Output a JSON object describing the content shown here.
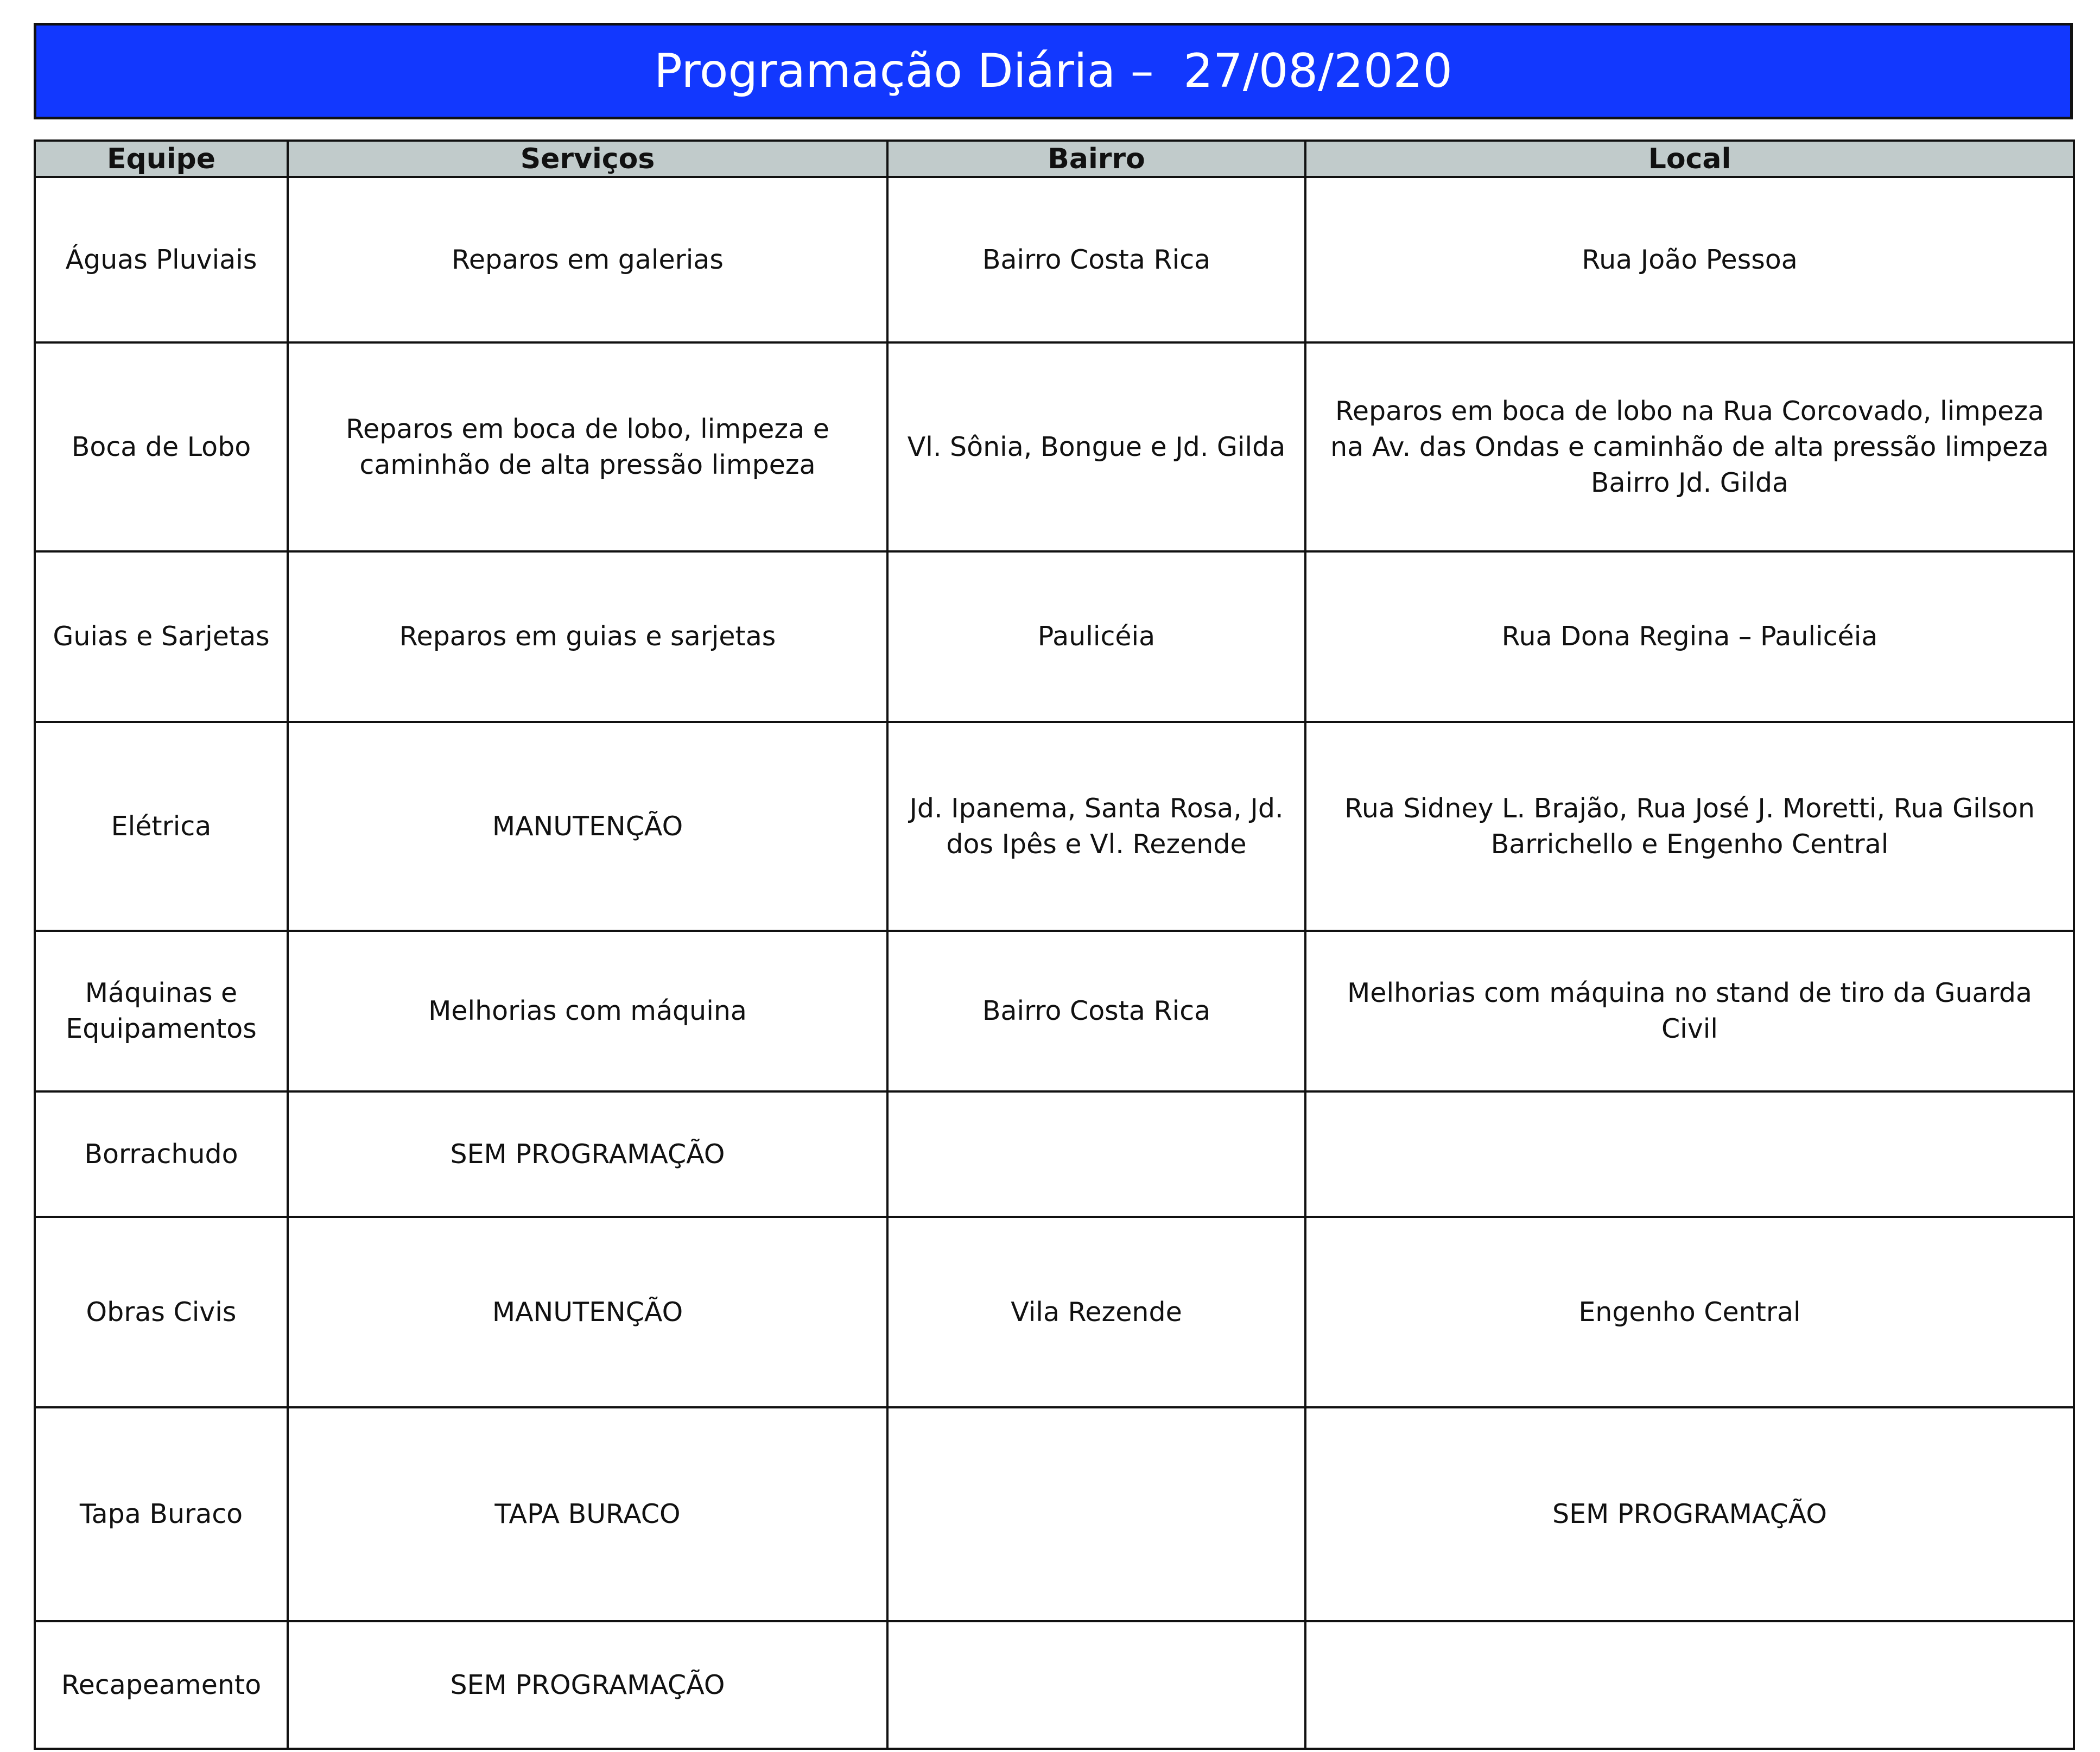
{
  "title": "Programação Diária –  27/08/2020",
  "columns": [
    "Equipe",
    "Serviços",
    "Bairro",
    "Local"
  ],
  "rows": [
    {
      "equipe": "Águas Pluviais",
      "servicos": "Reparos em galerias",
      "bairro": "Bairro Costa Rica",
      "local": "Rua João Pessoa"
    },
    {
      "equipe": "Boca de Lobo",
      "servicos": "Reparos em boca de lobo,  limpeza e caminhão de alta pressão limpeza",
      "bairro": "Vl. Sônia, Bongue e Jd. Gilda",
      "local": "Reparos em boca de lobo na Rua Corcovado, limpeza na Av. das Ondas e caminhão de alta pressão limpeza Bairro Jd. Gilda"
    },
    {
      "equipe": "Guias e Sarjetas",
      "servicos": "Reparos em guias e sarjetas",
      "bairro": "Paulicéia",
      "local": "Rua Dona Regina – Paulicéia"
    },
    {
      "equipe": "Elétrica",
      "servicos": "MANUTENÇÃO",
      "bairro": "Jd. Ipanema, Santa Rosa, Jd. dos Ipês e Vl. Rezende",
      "local": "Rua Sidney L. Brajão, Rua José J. Moretti, Rua Gilson Barrichello e Engenho Central"
    },
    {
      "equipe": "Máquinas e Equipamentos",
      "servicos": "Melhorias com máquina",
      "bairro": "Bairro Costa Rica",
      "local": "Melhorias com máquina no stand de tiro da Guarda Civil"
    },
    {
      "equipe": "Borrachudo",
      "servicos": "SEM PROGRAMAÇÃO",
      "bairro": "",
      "local": ""
    },
    {
      "equipe": "Obras Civis",
      "servicos": "MANUTENÇÃO",
      "bairro": "Vila Rezende",
      "local": "Engenho Central"
    },
    {
      "equipe": "Tapa Buraco",
      "servicos": "TAPA BURACO",
      "bairro": "",
      "local": "SEM PROGRAMAÇÃO"
    },
    {
      "equipe": "Recapeamento",
      "servicos": "SEM PROGRAMAÇÃO",
      "bairro": "",
      "local": ""
    }
  ],
  "colors": {
    "title_bg": "#1238fe",
    "header_bg": "#c1cbcb"
  }
}
